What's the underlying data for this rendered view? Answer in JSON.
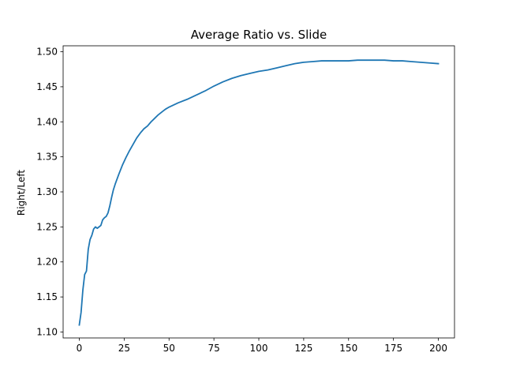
{
  "chart_data": {
    "type": "line",
    "title": "Average Ratio vs. Slide",
    "xlabel": "",
    "ylabel": "Right/Left",
    "xlim": [
      -9,
      209
    ],
    "ylim": [
      1.0915,
      1.5085
    ],
    "xticks": [
      0,
      25,
      50,
      75,
      100,
      125,
      150,
      175,
      200
    ],
    "yticks": [
      1.1,
      1.15,
      1.2,
      1.25,
      1.3,
      1.35,
      1.4,
      1.45,
      1.5
    ],
    "ytick_labels": [
      "1.10",
      "1.15",
      "1.20",
      "1.25",
      "1.30",
      "1.35",
      "1.40",
      "1.45",
      "1.50"
    ],
    "grid": false,
    "series": [
      {
        "color": "#1f77b4",
        "x": [
          0,
          1,
          2,
          3,
          4,
          5,
          6,
          7,
          8,
          9,
          10,
          11,
          12,
          13,
          14,
          15,
          16,
          17,
          18,
          19,
          20,
          22,
          24,
          26,
          28,
          30,
          32,
          34,
          36,
          38,
          40,
          42,
          44,
          46,
          48,
          50,
          55,
          60,
          65,
          70,
          75,
          80,
          85,
          90,
          95,
          100,
          105,
          110,
          115,
          120,
          125,
          130,
          135,
          140,
          145,
          150,
          155,
          160,
          165,
          170,
          175,
          180,
          185,
          190,
          195,
          200
        ],
        "y": [
          1.11,
          1.128,
          1.16,
          1.182,
          1.187,
          1.218,
          1.232,
          1.238,
          1.247,
          1.25,
          1.248,
          1.25,
          1.252,
          1.26,
          1.263,
          1.265,
          1.27,
          1.28,
          1.292,
          1.303,
          1.311,
          1.325,
          1.338,
          1.349,
          1.359,
          1.368,
          1.377,
          1.384,
          1.39,
          1.394,
          1.4,
          1.405,
          1.41,
          1.414,
          1.418,
          1.421,
          1.427,
          1.432,
          1.438,
          1.444,
          1.451,
          1.457,
          1.462,
          1.466,
          1.469,
          1.472,
          1.474,
          1.477,
          1.48,
          1.483,
          1.485,
          1.486,
          1.487,
          1.487,
          1.487,
          1.487,
          1.488,
          1.488,
          1.488,
          1.488,
          1.487,
          1.487,
          1.486,
          1.485,
          1.484,
          1.483
        ]
      }
    ]
  }
}
